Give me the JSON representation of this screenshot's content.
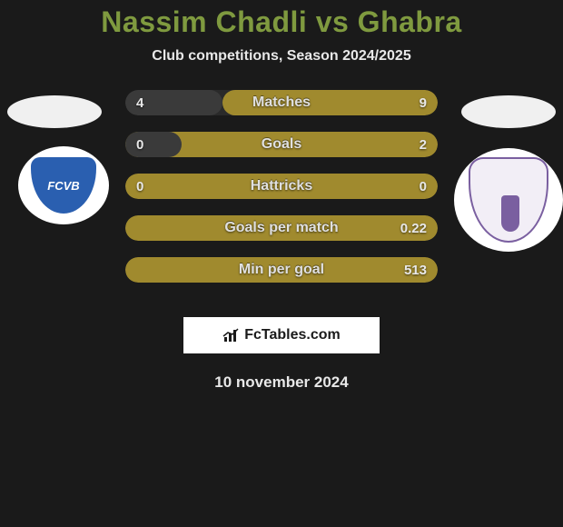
{
  "title": "Nassim Chadli vs Ghabra",
  "title_color": "#7f9a3f",
  "subtitle": "Club competitions, Season 2024/2025",
  "date": "10 november 2024",
  "brand": "FcTables.com",
  "left_team": {
    "shield_color": "#2a5fb0",
    "shield_text": "FCVB"
  },
  "right_team": {
    "shield_bg": "#f2eef6",
    "shield_border": "#7a5fa0"
  },
  "bar_colors": {
    "dominant": "#a08a2e",
    "recessive": "#3a3a3a",
    "fontsize": 16
  },
  "stats": [
    {
      "label": "Matches",
      "left_val": "4",
      "right_val": "9",
      "left_pct": 31,
      "right_pct": 69,
      "left_color": "#3a3a3a",
      "right_color": "#a08a2e"
    },
    {
      "label": "Goals",
      "left_val": "0",
      "right_val": "2",
      "left_pct": 18,
      "right_pct": 100,
      "left_color": "#3a3a3a",
      "right_color": "#a08a2e"
    },
    {
      "label": "Hattricks",
      "left_val": "0",
      "right_val": "0",
      "left_pct": 100,
      "right_pct": 0,
      "left_color": "#a08a2e",
      "right_color": "#3a3a3a"
    },
    {
      "label": "Goals per match",
      "left_val": "",
      "right_val": "0.22",
      "left_pct": 0,
      "right_pct": 100,
      "left_color": "#3a3a3a",
      "right_color": "#a08a2e"
    },
    {
      "label": "Min per goal",
      "left_val": "",
      "right_val": "513",
      "left_pct": 0,
      "right_pct": 100,
      "left_color": "#3a3a3a",
      "right_color": "#a08a2e"
    }
  ]
}
